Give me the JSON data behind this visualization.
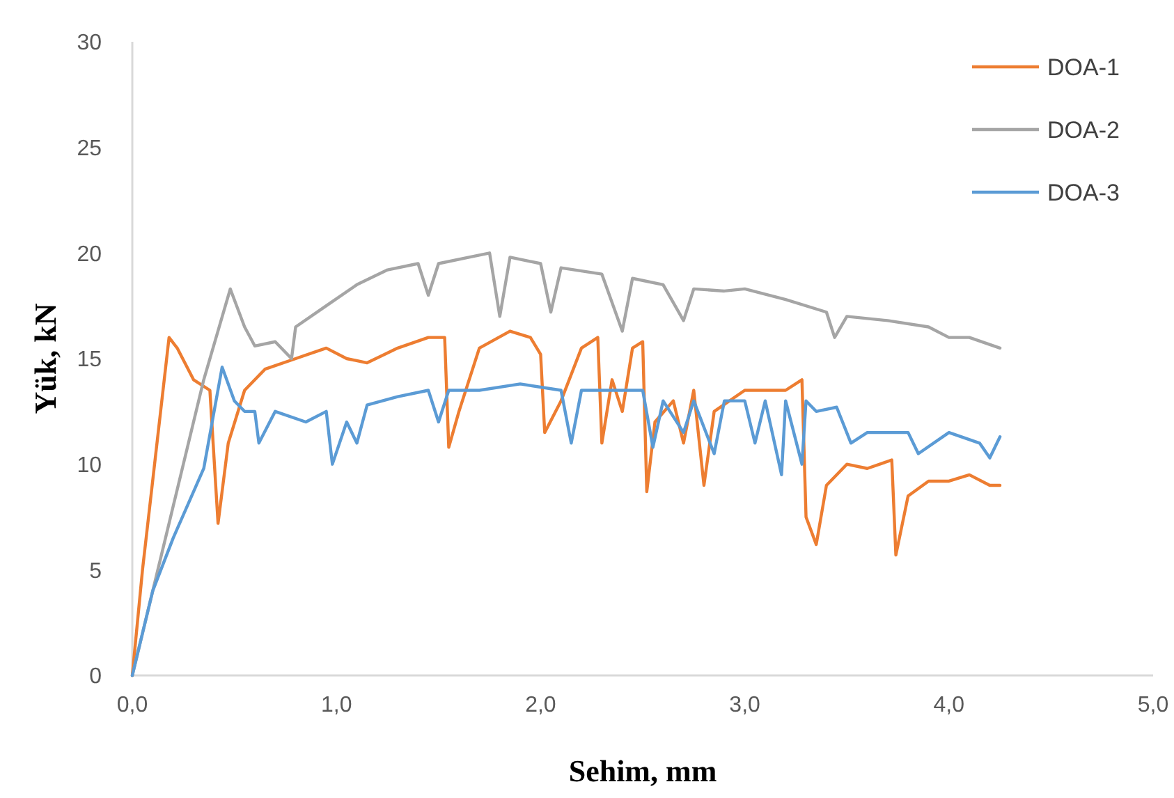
{
  "chart_data": {
    "type": "line",
    "xlabel": "Sehim, mm",
    "ylabel": "Yük, kN",
    "xlim": [
      0,
      5
    ],
    "ylim": [
      0,
      30
    ],
    "xticks": [
      {
        "value": 0,
        "label": "0,0"
      },
      {
        "value": 1,
        "label": "1,0"
      },
      {
        "value": 2,
        "label": "2,0"
      },
      {
        "value": 3,
        "label": "3,0"
      },
      {
        "value": 4,
        "label": "4,0"
      },
      {
        "value": 5,
        "label": "5,0"
      }
    ],
    "yticks": [
      0,
      5,
      10,
      15,
      20,
      25,
      30
    ],
    "grid": false,
    "legend": "top right",
    "marker": "none",
    "line_style": "solid",
    "series": [
      {
        "name": "DOA-1",
        "color": "#ed7d31",
        "x": [
          0,
          0.05,
          0.18,
          0.22,
          0.3,
          0.38,
          0.42,
          0.47,
          0.55,
          0.65,
          0.8,
          0.95,
          1.05,
          1.15,
          1.3,
          1.45,
          1.53,
          1.55,
          1.6,
          1.7,
          1.85,
          1.95,
          2.0,
          2.02,
          2.1,
          2.2,
          2.28,
          2.3,
          2.35,
          2.4,
          2.45,
          2.5,
          2.52,
          2.56,
          2.65,
          2.7,
          2.75,
          2.8,
          2.85,
          3.0,
          3.1,
          3.2,
          3.28,
          3.3,
          3.35,
          3.4,
          3.5,
          3.6,
          3.72,
          3.74,
          3.8,
          3.9,
          4.0,
          4.1,
          4.2,
          4.25
        ],
        "values": [
          0,
          5,
          16,
          15.5,
          14,
          13.5,
          7.2,
          11,
          13.5,
          14.5,
          15,
          15.5,
          15,
          14.8,
          15.5,
          16,
          16,
          10.8,
          12.5,
          15.5,
          16.3,
          16,
          15.2,
          11.5,
          13,
          15.5,
          16,
          11,
          14,
          12.5,
          15.5,
          15.8,
          8.7,
          12,
          13,
          11,
          13.5,
          9,
          12.5,
          13.5,
          13.5,
          13.5,
          14,
          7.5,
          6.2,
          9,
          10,
          9.8,
          10.2,
          5.7,
          8.5,
          9.2,
          9.2,
          9.5,
          9,
          9
        ]
      },
      {
        "name": "DOA-2",
        "color": "#a5a5a5",
        "x": [
          0,
          0.2,
          0.35,
          0.48,
          0.55,
          0.6,
          0.7,
          0.78,
          0.8,
          0.95,
          1.1,
          1.25,
          1.4,
          1.45,
          1.5,
          1.65,
          1.75,
          1.8,
          1.85,
          2.0,
          2.05,
          2.1,
          2.3,
          2.4,
          2.45,
          2.6,
          2.7,
          2.75,
          2.9,
          3.0,
          3.2,
          3.4,
          3.44,
          3.5,
          3.7,
          3.9,
          4.0,
          4.1,
          4.25
        ],
        "values": [
          0,
          8,
          14,
          18.3,
          16.5,
          15.6,
          15.8,
          15,
          16.5,
          17.5,
          18.5,
          19.2,
          19.5,
          18,
          19.5,
          19.8,
          20,
          17,
          19.8,
          19.5,
          17.2,
          19.3,
          19,
          16.3,
          18.8,
          18.5,
          16.8,
          18.3,
          18.2,
          18.3,
          17.8,
          17.2,
          16,
          17,
          16.8,
          16.5,
          16,
          16,
          15.5
        ]
      },
      {
        "name": "DOA-3",
        "color": "#5b9bd5",
        "x": [
          0,
          0.1,
          0.2,
          0.35,
          0.44,
          0.5,
          0.55,
          0.6,
          0.62,
          0.7,
          0.85,
          0.95,
          0.98,
          1.05,
          1.1,
          1.15,
          1.3,
          1.45,
          1.5,
          1.55,
          1.7,
          1.9,
          2.1,
          2.15,
          2.2,
          2.4,
          2.5,
          2.55,
          2.6,
          2.7,
          2.75,
          2.85,
          2.9,
          3.0,
          3.05,
          3.1,
          3.18,
          3.2,
          3.28,
          3.3,
          3.35,
          3.45,
          3.52,
          3.6,
          3.8,
          3.85,
          4.0,
          4.15,
          4.2,
          4.25
        ],
        "values": [
          0,
          4,
          6.5,
          9.8,
          14.6,
          13,
          12.5,
          12.5,
          11,
          12.5,
          12,
          12.5,
          10,
          12,
          11,
          12.8,
          13.2,
          13.5,
          12,
          13.5,
          13.5,
          13.8,
          13.5,
          11,
          13.5,
          13.5,
          13.5,
          10.8,
          13,
          11.5,
          13,
          10.5,
          13,
          13,
          11,
          13,
          9.5,
          13,
          10,
          13,
          12.5,
          12.7,
          11,
          11.5,
          11.5,
          10.5,
          11.5,
          11,
          10.3,
          11.3
        ]
      }
    ]
  }
}
